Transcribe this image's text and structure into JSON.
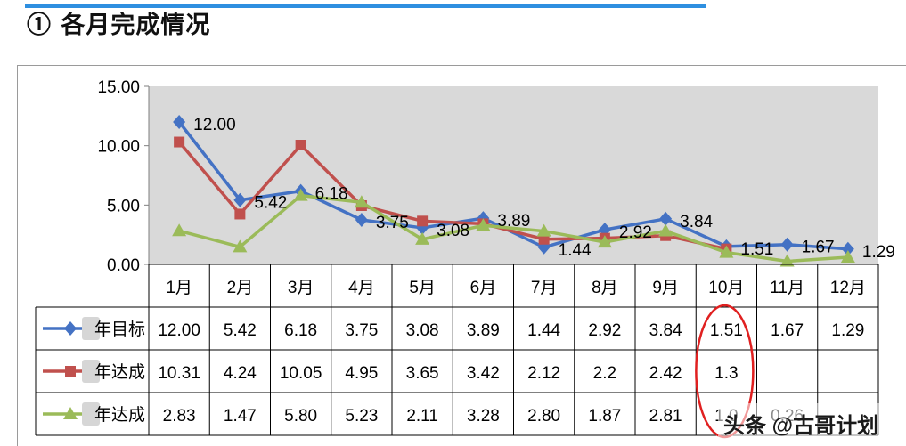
{
  "page": {
    "section_title": "① 各月完成情况",
    "watermark": "头条 @古哥计划"
  },
  "colors": {
    "series": [
      "#4472c4",
      "#c0504d",
      "#9bbb59"
    ],
    "plot_background": "#d9d9d9",
    "highlight_circle": "#e02020",
    "top_rule": "#2e8fe0"
  },
  "chart_data": {
    "type": "line",
    "categories": [
      "1月",
      "2月",
      "3月",
      "4月",
      "5月",
      "6月",
      "7月",
      "8月",
      "9月",
      "10月",
      "11月",
      "12月"
    ],
    "yticks": [
      "15.00",
      "10.00",
      "5.00",
      "0.00"
    ],
    "ylim": [
      0,
      15
    ],
    "grid": false,
    "legend": "table-left",
    "series": [
      {
        "name": "年目标",
        "marker": "diamond",
        "values": [
          12.0,
          5.42,
          6.18,
          3.75,
          3.08,
          3.89,
          1.44,
          2.92,
          3.84,
          1.51,
          1.67,
          1.29
        ],
        "table_text": [
          "12.00",
          "5.42",
          "6.18",
          "3.75",
          "3.08",
          "3.89",
          "1.44",
          "2.92",
          "3.84",
          "1.51",
          "1.67",
          "1.29"
        ],
        "point_labels": [
          "12.00",
          "5.42",
          "6.18",
          "3.75",
          "3.08",
          "3.89",
          "1.44",
          "2.92",
          "3.84",
          "1.51",
          "1.67",
          "1.29"
        ]
      },
      {
        "name": "年达成",
        "marker": "square",
        "values": [
          10.31,
          4.24,
          10.05,
          4.95,
          3.65,
          3.42,
          2.12,
          2.2,
          2.42,
          1.3,
          null,
          null
        ],
        "table_text": [
          "10.31",
          "4.24",
          "10.05",
          "4.95",
          "3.65",
          "3.42",
          "2.12",
          "2.2",
          "2.42",
          "1.3",
          "",
          ""
        ]
      },
      {
        "name": "年达成",
        "marker": "triangle",
        "values": [
          2.83,
          1.47,
          5.8,
          5.23,
          2.11,
          3.28,
          2.8,
          1.87,
          2.81,
          1.0,
          0.26,
          0.6
        ],
        "table_text": [
          "2.83",
          "1.47",
          "5.80",
          "5.23",
          "2.11",
          "3.28",
          "2.80",
          "1.87",
          "2.81",
          "1.0",
          "0.26",
          ""
        ]
      }
    ]
  }
}
